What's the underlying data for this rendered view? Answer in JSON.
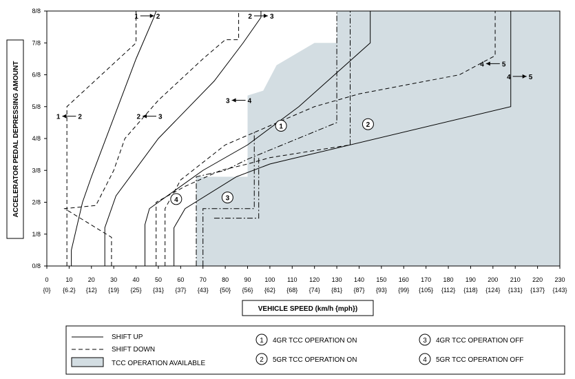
{
  "chart_data": {
    "type": "line",
    "xlabel": "VEHICLE SPEED (km/h {mph})",
    "ylabel": "ACCELERATOR PEDAL DEPRESSING AMOUNT",
    "xlim": [
      0,
      230
    ],
    "ylim": [
      0,
      8
    ],
    "x_ticks": [
      0,
      10,
      20,
      30,
      40,
      50,
      60,
      70,
      80,
      90,
      100,
      110,
      120,
      130,
      140,
      150,
      160,
      170,
      180,
      190,
      200,
      210,
      220,
      230
    ],
    "x_ticks_mph": [
      "{0}",
      "{6.2}",
      "{12}",
      "{19}",
      "{25}",
      "{31}",
      "{37}",
      "{43}",
      "{50}",
      "{56}",
      "{62}",
      "{68}",
      "{74}",
      "{81}",
      "{87}",
      "{93}",
      "{99}",
      "{105}",
      "{112}",
      "{118}",
      "{124}",
      "{131}",
      "{137}",
      "{143}"
    ],
    "y_ticks": [
      "0/8",
      "1/8",
      "2/8",
      "3/8",
      "4/8",
      "5/8",
      "6/8",
      "7/8",
      "8/8"
    ],
    "tcc_region": [
      [
        67,
        0
      ],
      [
        67,
        2.8
      ],
      [
        90,
        2.8
      ],
      [
        90,
        5.35
      ],
      [
        97,
        5.5
      ],
      [
        103,
        6.3
      ],
      [
        120,
        7
      ],
      [
        130,
        7
      ],
      [
        130,
        8
      ],
      [
        230,
        8
      ],
      [
        230,
        0
      ]
    ],
    "series": [
      {
        "name": "1-2",
        "style": "solid",
        "points": [
          [
            11,
            0
          ],
          [
            11,
            0.5
          ],
          [
            16,
            2
          ],
          [
            20,
            2.8
          ],
          [
            40,
            6.5
          ],
          [
            48,
            7.8
          ],
          [
            49,
            8
          ]
        ]
      },
      {
        "name": "1-2",
        "style": "dashed",
        "points": [
          [
            9,
            0
          ],
          [
            9,
            5
          ],
          [
            40,
            7
          ],
          [
            40,
            8
          ]
        ]
      },
      {
        "name": "2-3",
        "style": "solid",
        "points": [
          [
            26,
            0
          ],
          [
            26,
            1.2
          ],
          [
            31,
            2.2
          ],
          [
            50,
            4
          ],
          [
            75,
            5.8
          ],
          [
            88,
            7
          ],
          [
            96,
            7.8
          ],
          [
            96,
            8
          ]
        ]
      },
      {
        "name": "2-3",
        "style": "dashed",
        "points": [
          [
            29,
            0
          ],
          [
            29,
            0.9
          ],
          [
            8,
            1.8
          ],
          [
            22,
            1.9
          ],
          [
            30,
            3
          ],
          [
            35,
            4
          ],
          [
            50,
            5.2
          ],
          [
            70,
            6.5
          ],
          [
            80,
            7.1
          ],
          [
            86,
            7.1
          ],
          [
            86,
            8
          ]
        ]
      },
      {
        "name": "3-4",
        "style": "solid",
        "points": [
          [
            44,
            0
          ],
          [
            44,
            1.3
          ],
          [
            46,
            1.8
          ],
          [
            70,
            3
          ],
          [
            90,
            3.8
          ],
          [
            113,
            5
          ],
          [
            145,
            7
          ],
          [
            145,
            8
          ]
        ]
      },
      {
        "name": "3-4",
        "style": "dashed",
        "points": [
          [
            53,
            0
          ],
          [
            53,
            1.8
          ],
          [
            60,
            2.7
          ],
          [
            80,
            3.8
          ],
          [
            100,
            4.4
          ],
          [
            120,
            5.0
          ],
          [
            140,
            5.4
          ],
          [
            185,
            6
          ],
          [
            201,
            6.6
          ],
          [
            201,
            8
          ]
        ]
      },
      {
        "name": "4-5",
        "style": "solid",
        "points": [
          [
            57,
            0
          ],
          [
            57,
            1.2
          ],
          [
            62,
            1.8
          ],
          [
            85,
            2.8
          ],
          [
            100,
            3.2
          ],
          [
            208,
            5
          ],
          [
            208,
            8
          ]
        ]
      },
      {
        "name": "4-5",
        "style": "dashed",
        "points": [
          [
            49,
            0
          ],
          [
            49,
            2.0
          ],
          [
            62,
            2.5
          ],
          [
            78,
            3
          ],
          [
            90,
            3.2
          ],
          [
            100,
            3.4
          ],
          [
            136,
            3.8
          ]
        ]
      },
      {
        "name": "TCC 4GR ON",
        "style": "dashdot",
        "points": [
          [
            67,
            0
          ],
          [
            67,
            2.8
          ],
          [
            80,
            3
          ],
          [
            90,
            3.35
          ],
          [
            130,
            4.5
          ],
          [
            130,
            8
          ]
        ]
      },
      {
        "name": "TCC 5GR ON",
        "style": "dashdot",
        "points": [
          [
            136,
            3.8
          ],
          [
            136,
            5.2
          ],
          [
            136,
            8
          ]
        ]
      },
      {
        "name": "TCC 4GR OFF",
        "style": "dashdot",
        "points": [
          [
            70,
            0
          ],
          [
            70,
            1.8
          ],
          [
            93,
            1.8
          ],
          [
            93,
            4.2
          ]
        ]
      },
      {
        "name": "TCC 5GR OFF",
        "style": "dashdot",
        "points": [
          [
            75,
            1.5
          ],
          [
            95,
            1.5
          ],
          [
            95,
            3.4
          ]
        ]
      }
    ],
    "shift_labels": [
      {
        "text": "1",
        "arrow": "right",
        "text2": "2",
        "xv": 45,
        "yv": 7.85
      },
      {
        "text": "2",
        "arrow": "right",
        "text2": "3",
        "xv": 96,
        "yv": 7.85
      },
      {
        "text": "1",
        "arrow": "left",
        "text2": "2",
        "xv": 10,
        "yv": 4.7
      },
      {
        "text": "2",
        "arrow": "left",
        "text2": "3",
        "xv": 46,
        "yv": 4.7
      },
      {
        "text": "3",
        "arrow": "left",
        "text2": "4",
        "xv": 86,
        "yv": 5.2
      },
      {
        "text": "4",
        "arrow": "left",
        "text2": "5",
        "xv": 200,
        "yv": 6.35
      },
      {
        "text": "4",
        "arrow": "right",
        "text2": "5",
        "xv": 212,
        "yv": 5.95
      }
    ],
    "circle_labels": [
      {
        "text": "1",
        "xv": 105,
        "yv": 4.4
      },
      {
        "text": "2",
        "xv": 144,
        "yv": 4.45
      },
      {
        "text": "3",
        "xv": 81,
        "yv": 2.15
      },
      {
        "text": "4",
        "xv": 58,
        "yv": 2.1
      }
    ]
  },
  "legend": {
    "shift_up": "SHIFT UP",
    "shift_down": "SHIFT DOWN",
    "tcc_available": "TCC OPERATION AVAILABLE",
    "items": [
      {
        "num": "1",
        "text": "4GR TCC OPERATION ON"
      },
      {
        "num": "2",
        "text": "5GR TCC OPERATION ON"
      },
      {
        "num": "3",
        "text": "4GR TCC OPERATION OFF"
      },
      {
        "num": "4",
        "text": "5GR TCC OPERATION OFF"
      }
    ]
  },
  "colors": {
    "tcc_fill": "#d3dde2",
    "line": "#000000"
  }
}
